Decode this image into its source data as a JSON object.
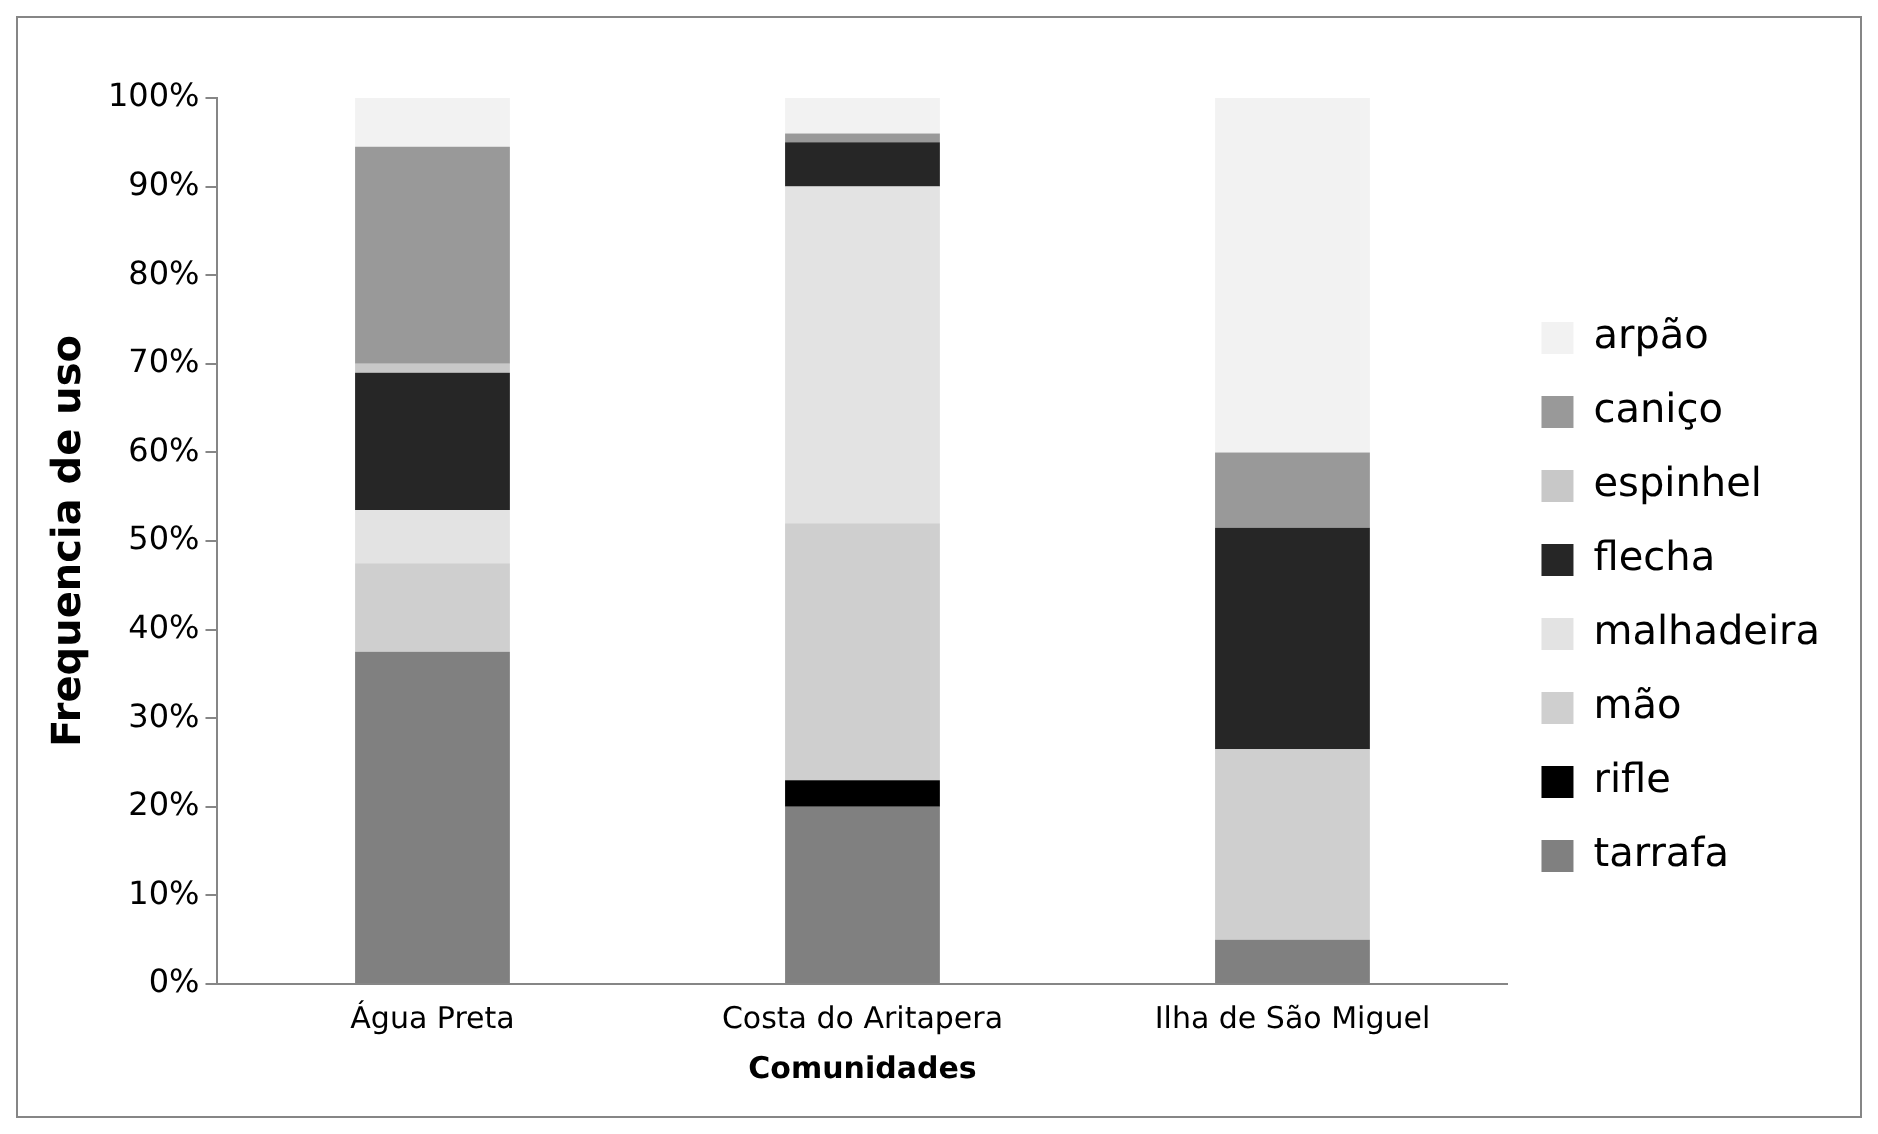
{
  "chart_data": {
    "type": "bar",
    "stacked": true,
    "xlabel": "Comunidades",
    "ylabel": "Frequencia de uso",
    "categories": [
      "Água Preta",
      "Costa do Aritapera",
      "Ilha de São Miguel"
    ],
    "series": [
      {
        "name": "tarrafa",
        "color": "#808080",
        "values": [
          37.5,
          20,
          5
        ]
      },
      {
        "name": "rifle",
        "color": "#000000",
        "values": [
          0,
          3,
          0
        ]
      },
      {
        "name": "mão",
        "color": "#cfcfcf",
        "values": [
          10,
          29,
          21.5
        ]
      },
      {
        "name": "malhadeira",
        "color": "#e3e3e3",
        "values": [
          6,
          38,
          0
        ]
      },
      {
        "name": "flecha",
        "color": "#262626",
        "values": [
          15.5,
          5,
          25
        ]
      },
      {
        "name": "espinhel",
        "color": "#c8c8c8",
        "values": [
          1,
          0,
          0
        ]
      },
      {
        "name": "caniço",
        "color": "#999999",
        "values": [
          24.5,
          1,
          8.5
        ]
      },
      {
        "name": "arpão",
        "color": "#f2f2f2",
        "values": [
          5.5,
          4,
          40
        ]
      }
    ],
    "ylim": [
      0,
      100
    ],
    "yticks": [
      {
        "value": 0,
        "label": "0%"
      },
      {
        "value": 10,
        "label": "10%"
      },
      {
        "value": 20,
        "label": "20%"
      },
      {
        "value": 30,
        "label": "30%"
      },
      {
        "value": 40,
        "label": "40%"
      },
      {
        "value": 50,
        "label": "50%"
      },
      {
        "value": 60,
        "label": "60%"
      },
      {
        "value": 70,
        "label": "70%"
      },
      {
        "value": 80,
        "label": "80%"
      },
      {
        "value": 90,
        "label": "90%"
      },
      {
        "value": 100,
        "label": "100%"
      }
    ],
    "grid": false,
    "legend": "right"
  }
}
